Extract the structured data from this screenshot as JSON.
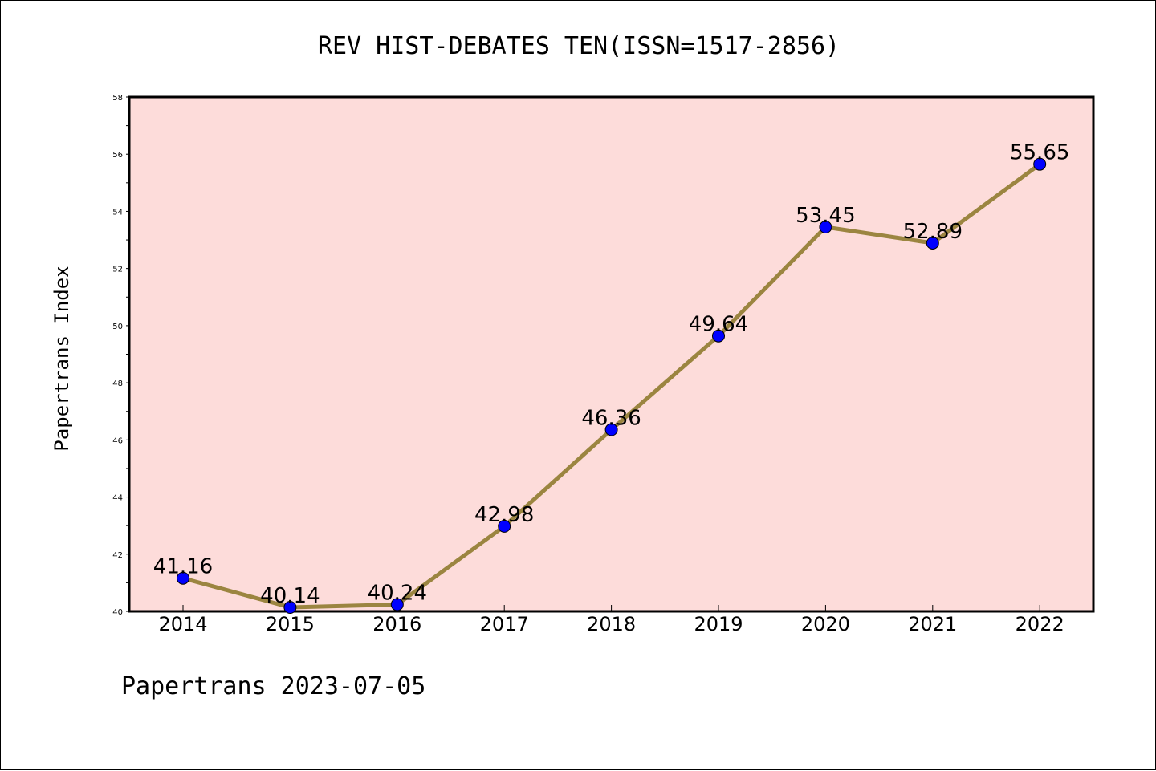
{
  "footer_text": "Papertrans 2023-07-05",
  "colors": {
    "plot_background": "#fddcda",
    "line": "#9b8540",
    "marker": "#0000ff"
  },
  "chart_data": {
    "type": "line",
    "title": "REV HIST-DEBATES TEN(ISSN=1517-2856)",
    "xlabel": "",
    "ylabel": "Papertrans Index",
    "categories": [
      "2014",
      "2015",
      "2016",
      "2017",
      "2018",
      "2019",
      "2020",
      "2021",
      "2022"
    ],
    "values": [
      41.16,
      40.14,
      40.24,
      42.98,
      46.36,
      49.64,
      53.45,
      52.89,
      55.65
    ],
    "data_labels": [
      "41.16",
      "40.14",
      "40.24",
      "42.98",
      "46.36",
      "49.64",
      "53.45",
      "52.89",
      "55.65"
    ],
    "ylim": [
      40,
      58
    ],
    "yticks": [
      40,
      42,
      44,
      46,
      48,
      50,
      52,
      54,
      56,
      58
    ],
    "grid": false,
    "legend": "none"
  }
}
